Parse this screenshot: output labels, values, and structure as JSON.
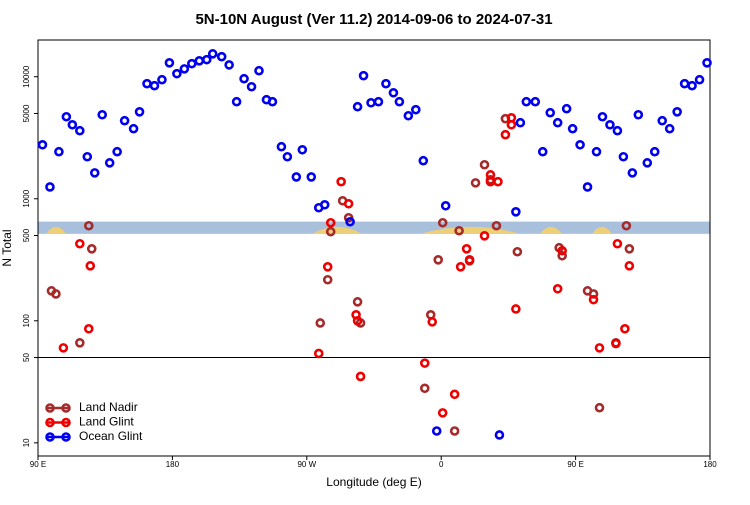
{
  "chart_data": {
    "type": "scatter",
    "title": "5N-10N August (Ver 11.2)   2014-09-06 to 2024-07-31",
    "x_label": "Longitude (deg E)",
    "y_label": "N Total",
    "log_y": true,
    "legend": "bottom left",
    "xlim": [
      90,
      540
    ],
    "ylim": [
      7.8,
      20000
    ],
    "xticks": [
      {
        "value": 90,
        "label": "90 E"
      },
      {
        "value": 180,
        "label": "180"
      },
      {
        "value": 270,
        "label": "90 W"
      },
      {
        "value": 360,
        "label": "0"
      },
      {
        "value": 450,
        "label": "90 E"
      },
      {
        "value": 540,
        "label": "180"
      }
    ],
    "yticks": [
      10,
      50,
      100,
      500,
      1000,
      5000,
      10000
    ],
    "reference_line": 50,
    "reference_line_color": "#000000",
    "shaded_band": [
      516,
      650
    ],
    "shaded_band_color": "#a8c0dc",
    "series": [
      {
        "name": "Land Nadir",
        "color": "#a52a2a",
        "x": [
          99,
          102,
          124,
          126,
          118,
          279,
          284,
          286,
          294,
          298,
          304,
          306,
          349,
          353,
          358,
          361,
          369,
          372,
          379,
          389,
          393,
          383,
          397,
          403,
          411,
          439,
          441,
          458,
          462,
          484,
          486,
          477,
          466
        ],
        "values": [
          176,
          166,
          601,
          389,
          66,
          96,
          217,
          537,
          963,
          699,
          143,
          96,
          28,
          112,
          316,
          636,
          12.5,
          547,
          310,
          1900,
          1430,
          1350,
          601,
          4530,
          368,
          397,
          341,
          176,
          166,
          601,
          389,
          66,
          19.4
        ]
      },
      {
        "name": "Land Glint",
        "color": "#ee0000",
        "x": [
          118,
          125,
          124,
          107,
          278,
          284,
          286,
          293,
          298,
          303,
          304,
          306,
          349,
          354,
          361,
          369,
          373,
          377,
          379,
          389,
          393,
          393,
          398,
          403,
          407,
          410,
          407,
          438,
          441,
          462,
          466,
          478,
          486,
          483,
          477
        ],
        "values": [
          428,
          282,
          86,
          60,
          54,
          277,
          636,
          1380,
          910,
          112,
          100,
          35,
          45,
          98,
          17.6,
          25,
          277,
          389,
          316,
          497,
          1570,
          1380,
          1380,
          3350,
          4040,
          125,
          4610,
          183,
          375,
          149,
          60,
          428,
          282,
          86,
          65
        ]
      },
      {
        "name": "Ocean Glint",
        "color": "#0000ee",
        "x": [
          93,
          98,
          104,
          109,
          113,
          118,
          123,
          128,
          133,
          138,
          143,
          148,
          154,
          158,
          163,
          168,
          173,
          178,
          183,
          188,
          193,
          198,
          203,
          207,
          213,
          218,
          223,
          228,
          233,
          238,
          243,
          247,
          253,
          257,
          263,
          267,
          273,
          278,
          282,
          299,
          304,
          308,
          313,
          318,
          323,
          328,
          332,
          338,
          343,
          348,
          357,
          363,
          399,
          410,
          413,
          417,
          423,
          428,
          433,
          438,
          444,
          448,
          453,
          458,
          464,
          468,
          473,
          478,
          482,
          488,
          492,
          498,
          503,
          508,
          513,
          518,
          523,
          528,
          533,
          538
        ],
        "values": [
          2770,
          1250,
          2430,
          4700,
          4040,
          3610,
          2210,
          1630,
          4880,
          1970,
          2430,
          4360,
          3750,
          5160,
          8770,
          8440,
          9450,
          13000,
          10600,
          11600,
          12800,
          13500,
          13800,
          15400,
          14600,
          12500,
          6240,
          9630,
          8280,
          11200,
          6480,
          6240,
          2670,
          2210,
          1510,
          2520,
          1510,
          844,
          893,
          648,
          5680,
          10200,
          6120,
          6240,
          8770,
          7390,
          6240,
          4790,
          5370,
          2050,
          12.5,
          876,
          11.6,
          782,
          4200,
          6240,
          6240,
          2430,
          5070,
          4200,
          5470,
          3750,
          2770,
          1250,
          2430,
          4700,
          4040,
          3610,
          2210,
          1630,
          4880,
          1970,
          2430,
          4360,
          3750,
          5160,
          8770,
          8440,
          9450,
          13000
        ]
      }
    ]
  }
}
